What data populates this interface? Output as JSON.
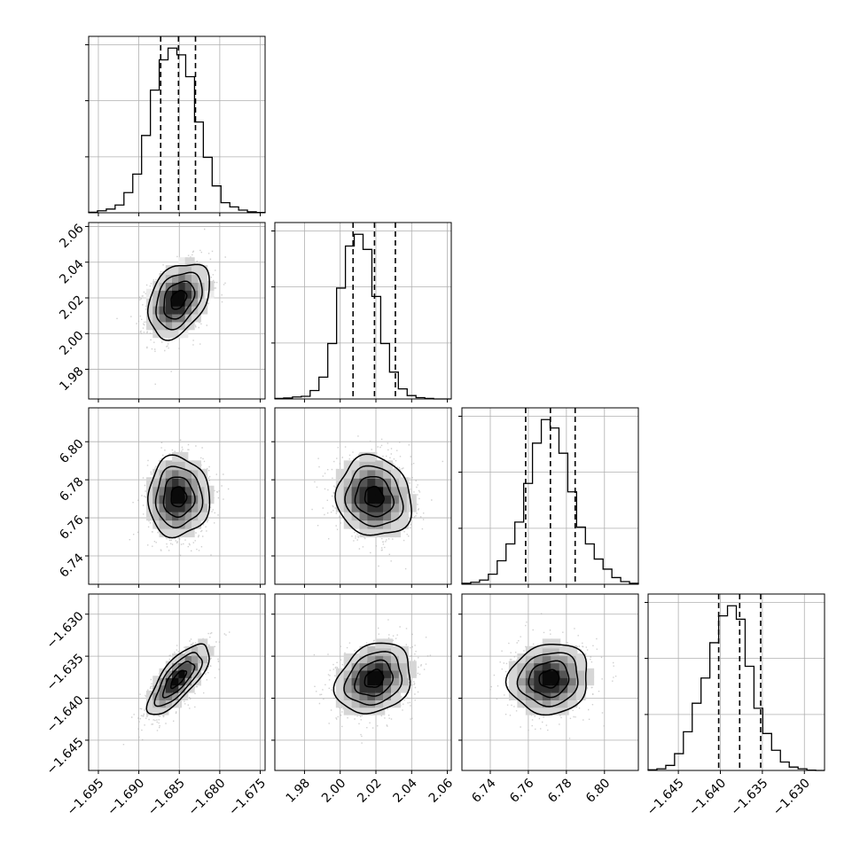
{
  "chart_data": {
    "type": "corner",
    "title": "",
    "parameters": [
      {
        "range": [
          -1.6962,
          -1.6744
        ],
        "ticks": [
          -1.695,
          -1.69,
          -1.685,
          -1.68,
          -1.675
        ],
        "tick_labels": [
          "−1.695",
          "−1.690",
          "−1.685",
          "−1.680",
          "−1.675"
        ],
        "mean": -1.6851,
        "sd": 0.0019,
        "quantiles": [
          -1.6873,
          -1.6851,
          -1.683
        ]
      },
      {
        "range": [
          1.9634,
          2.0622
        ],
        "ticks": [
          1.98,
          2.0,
          2.02,
          2.04,
          2.06
        ],
        "tick_labels": [
          "1.98",
          "2.00",
          "2.02",
          "2.04",
          "2.06"
        ],
        "mean": 2.019,
        "sd": 0.0105,
        "quantiles": [
          2.0072,
          2.0192,
          2.0309
        ]
      },
      {
        "range": [
          6.7251,
          6.8178
        ],
        "ticks": [
          6.74,
          6.76,
          6.78,
          6.8
        ],
        "tick_labels": [
          "6.74",
          "6.76",
          "6.78",
          "6.80"
        ],
        "mean": 6.771,
        "sd": 0.0105,
        "quantiles": [
          6.7586,
          6.7716,
          6.7846
        ]
      },
      {
        "range": [
          -1.6486,
          -1.6276
        ],
        "ticks": [
          -1.645,
          -1.64,
          -1.635,
          -1.63
        ],
        "tick_labels": [
          "−1.645",
          "−1.640",
          "−1.635",
          "−1.630"
        ],
        "mean": -1.6377,
        "sd": 0.0021,
        "quantiles": [
          -1.6402,
          -1.6377,
          -1.6352
        ]
      }
    ],
    "histograms": [
      {
        "bin_counts": [
          0.003,
          0.012,
          0.022,
          0.046,
          0.12,
          0.23,
          0.46,
          0.73,
          0.91,
          0.98,
          0.94,
          0.81,
          0.54,
          0.33,
          0.16,
          0.06,
          0.035,
          0.016,
          0.006,
          0.002
        ]
      },
      {
        "bin_counts": [
          0.003,
          0.006,
          0.012,
          0.016,
          0.05,
          0.13,
          0.33,
          0.66,
          0.91,
          0.98,
          0.89,
          0.61,
          0.33,
          0.16,
          0.06,
          0.02,
          0.008,
          0.003,
          0.0,
          0.0
        ]
      },
      {
        "bin_counts": [
          0.006,
          0.012,
          0.025,
          0.06,
          0.14,
          0.24,
          0.37,
          0.6,
          0.84,
          0.98,
          0.93,
          0.78,
          0.55,
          0.34,
          0.24,
          0.15,
          0.09,
          0.04,
          0.016,
          0.006
        ]
      },
      {
        "bin_counts": [
          0.004,
          0.01,
          0.03,
          0.1,
          0.23,
          0.4,
          0.55,
          0.76,
          0.92,
          0.98,
          0.9,
          0.62,
          0.37,
          0.22,
          0.12,
          0.05,
          0.02,
          0.01,
          0.002,
          0.0
        ]
      }
    ],
    "correlations": [
      {
        "x_param": 0,
        "y_param": 1,
        "r": 0.35
      },
      {
        "x_param": 0,
        "y_param": 2,
        "r": 0.0
      },
      {
        "x_param": 1,
        "y_param": 2,
        "r": -0.1
      },
      {
        "x_param": 0,
        "y_param": 3,
        "r": 0.75
      },
      {
        "x_param": 1,
        "y_param": 3,
        "r": 0.22
      },
      {
        "x_param": 2,
        "y_param": 3,
        "r": 0.08
      }
    ],
    "contour_levels_sigma": [
      0.5,
      1.0,
      1.5,
      2.0
    ],
    "histogram_ticks": [
      0.333,
      0.667,
      1.0
    ],
    "quantile_line_style": "dashed",
    "scatter_color": "#b0b0b0",
    "density_color": "#000000",
    "grid": true
  }
}
